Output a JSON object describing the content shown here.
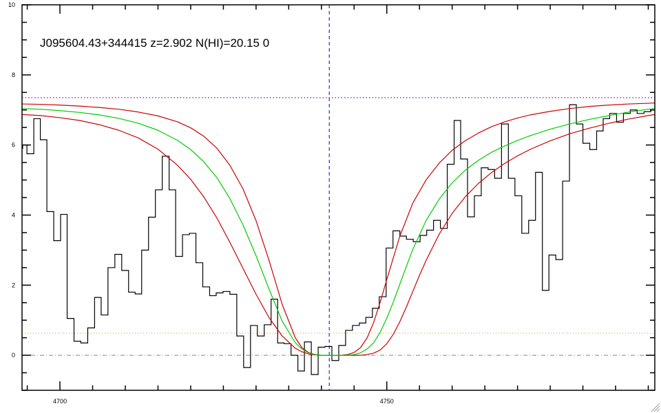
{
  "chart_data": {
    "type": "line",
    "title": "J095604.43+344415 z=2.902 N(HI)=20.15 0",
    "xlabel": "",
    "ylabel": "",
    "xlim": [
      4694.2,
      4791.0
    ],
    "ylim": [
      -1.0,
      10.0
    ],
    "x_ticks": [
      4700,
      4750
    ],
    "x_tick_labels": [
      "4700",
      "4750"
    ],
    "y_ticks": [
      0,
      2,
      4,
      6,
      8,
      10
    ],
    "y_tick_labels": [
      "0",
      "2",
      "4",
      "6",
      "8",
      "10"
    ],
    "grid": false,
    "continuum_level": 7.35,
    "zero_level": 0.0,
    "error_level": 0.63,
    "line_center": 4741.2,
    "colors": {
      "flux": "#000000",
      "fit": "#00cc00",
      "fit_bounds": "#cc0000",
      "continuum": "#8800cc",
      "line_center": "#0000cc",
      "error": "#ff8800",
      "zero": "#888888"
    },
    "flux": {
      "x": [
        4694.2,
        4694.4,
        4695.5,
        4696.5,
        4697.5,
        4698.5,
        4699.6,
        4700.6,
        4701.6,
        4702.7,
        4703.7,
        4704.8,
        4705.8,
        4706.8,
        4707.9,
        4708.9,
        4710.0,
        4711.0,
        4712.0,
        4713.0,
        4714.1,
        4715.1,
        4716.2,
        4717.2,
        4718.2,
        4719.3,
        4720.3,
        4721.3,
        4722.4,
        4723.4,
        4724.4,
        4725.5,
        4726.5,
        4727.6,
        4728.6,
        4729.7,
        4730.7,
        4731.8,
        4732.8,
        4733.8,
        4734.8,
        4735.9,
        4736.9,
        4737.9,
        4739.0,
        4740.0,
        4741.1,
        4742.1,
        4743.2,
        4744.2,
        4745.3,
        4746.3,
        4747.3,
        4748.3,
        4749.4,
        4750.4,
        4751.5,
        4752.5,
        4753.5,
        4754.6,
        4755.6,
        4756.6,
        4757.7,
        4758.7,
        4759.8,
        4760.8,
        4761.8,
        4762.9,
        4763.9,
        4765.0,
        4766.0,
        4767.0,
        4768.1,
        4769.1,
        4770.1,
        4771.2,
        4772.2,
        4773.3,
        4774.3,
        4775.3,
        4776.4,
        4777.4,
        4778.5,
        4779.5,
        4780.5,
        4781.6,
        4782.6,
        4783.6,
        4784.6,
        4785.7,
        4786.7,
        4787.8,
        4788.8,
        4789.9,
        4790.9
      ],
      "y": [
        5.9,
        6.0,
        5.75,
        6.75,
        6.15,
        4.1,
        3.27,
        4.02,
        1.05,
        0.4,
        0.35,
        0.78,
        1.65,
        1.15,
        2.5,
        2.88,
        2.42,
        1.8,
        1.75,
        3.0,
        3.94,
        4.72,
        5.68,
        4.72,
        2.82,
        3.44,
        3.48,
        2.64,
        1.95,
        1.7,
        1.78,
        1.82,
        1.74,
        0.55,
        -0.35,
        0.85,
        0.55,
        0.87,
        1.6,
        0.35,
        0.33,
        0.0,
        -0.45,
        0.38,
        -0.55,
        0.23,
        0.25,
        -0.15,
        0.28,
        0.71,
        0.85,
        0.92,
        1.08,
        1.34,
        1.67,
        3.06,
        3.55,
        3.4,
        3.31,
        3.24,
        3.42,
        3.57,
        3.85,
        3.62,
        5.45,
        6.7,
        5.6,
        3.95,
        4.55,
        5.35,
        5.3,
        5.05,
        6.6,
        5.05,
        4.55,
        3.48,
        3.85,
        5.22,
        1.85,
        2.86,
        2.73,
        4.97,
        7.15,
        6.6,
        6.05,
        5.87,
        6.4,
        6.75,
        6.9,
        6.65,
        6.9,
        7.0,
        6.9,
        6.95,
        7.0
      ]
    },
    "fit_center": {
      "x": [
        4694.2,
        4697,
        4700,
        4703,
        4706,
        4709,
        4712,
        4715,
        4718,
        4720,
        4722,
        4724,
        4726,
        4728,
        4730,
        4732,
        4734,
        4736,
        4737,
        4738,
        4739,
        4740,
        4741,
        4742,
        4743,
        4744,
        4745,
        4746,
        4747,
        4748,
        4749,
        4750,
        4751,
        4752,
        4753,
        4754,
        4756,
        4758,
        4760,
        4762,
        4764,
        4766,
        4768,
        4770,
        4772,
        4775,
        4778,
        4781,
        4784,
        4787,
        4790,
        4791
      ],
      "y": [
        7.04,
        7.02,
        6.98,
        6.93,
        6.86,
        6.76,
        6.62,
        6.42,
        6.13,
        5.87,
        5.52,
        5.07,
        4.47,
        3.72,
        2.84,
        1.88,
        0.97,
        0.36,
        0.18,
        0.07,
        0.02,
        0.0,
        0.0,
        0.0,
        0.0,
        0.0,
        0.02,
        0.07,
        0.18,
        0.36,
        0.66,
        1.06,
        1.52,
        2.03,
        2.54,
        3.03,
        3.84,
        4.45,
        4.92,
        5.28,
        5.56,
        5.79,
        5.97,
        6.13,
        6.27,
        6.45,
        6.6,
        6.73,
        6.84,
        6.94,
        7.02,
        7.04
      ]
    },
    "fit_upper": {
      "x": [
        4694.2,
        4697,
        4700,
        4703,
        4706,
        4709,
        4712,
        4715,
        4718,
        4720,
        4722,
        4724,
        4726,
        4728,
        4730,
        4732,
        4734,
        4736,
        4737,
        4738,
        4739,
        4740,
        4741,
        4742,
        4743,
        4744,
        4745,
        4746,
        4747,
        4748,
        4749,
        4750,
        4752,
        4754,
        4756,
        4758,
        4760,
        4762,
        4764,
        4766,
        4768,
        4770,
        4772,
        4775,
        4778,
        4781,
        4784,
        4787,
        4790,
        4791
      ],
      "y": [
        7.17,
        7.16,
        7.14,
        7.11,
        7.07,
        7.02,
        6.94,
        6.83,
        6.66,
        6.49,
        6.25,
        5.91,
        5.42,
        4.75,
        3.84,
        2.7,
        1.45,
        0.5,
        0.22,
        0.08,
        0.02,
        0.0,
        0.0,
        0.0,
        0.0,
        0.02,
        0.08,
        0.22,
        0.5,
        0.94,
        1.52,
        2.16,
        3.4,
        4.35,
        5.0,
        5.48,
        5.85,
        6.12,
        6.34,
        6.52,
        6.66,
        6.77,
        6.86,
        6.96,
        7.04,
        7.1,
        7.14,
        7.17,
        7.19,
        7.2
      ]
    },
    "fit_lower": {
      "x": [
        4694.2,
        4697,
        4700,
        4703,
        4706,
        4709,
        4712,
        4715,
        4718,
        4720,
        4722,
        4724,
        4726,
        4728,
        4730,
        4732,
        4734,
        4736,
        4737,
        4738,
        4739,
        4740,
        4741,
        4742,
        4743,
        4744,
        4745,
        4746,
        4747,
        4748,
        4749,
        4750,
        4751,
        4752,
        4753,
        4754,
        4755,
        4756,
        4758,
        4760,
        4762,
        4764,
        4766,
        4768,
        4770,
        4772,
        4775,
        4778,
        4781,
        4784,
        4787,
        4790,
        4791
      ],
      "y": [
        6.87,
        6.84,
        6.78,
        6.7,
        6.58,
        6.42,
        6.2,
        5.88,
        5.42,
        5.02,
        4.52,
        3.92,
        3.22,
        2.48,
        1.74,
        1.07,
        0.55,
        0.2,
        0.1,
        0.04,
        0.01,
        0.0,
        0.0,
        0.0,
        0.0,
        0.0,
        0.0,
        0.0,
        0.02,
        0.06,
        0.15,
        0.33,
        0.6,
        0.96,
        1.38,
        1.83,
        2.28,
        2.7,
        3.45,
        4.05,
        4.52,
        4.9,
        5.21,
        5.47,
        5.69,
        5.88,
        6.12,
        6.32,
        6.48,
        6.62,
        6.74,
        6.84,
        6.87
      ]
    }
  }
}
